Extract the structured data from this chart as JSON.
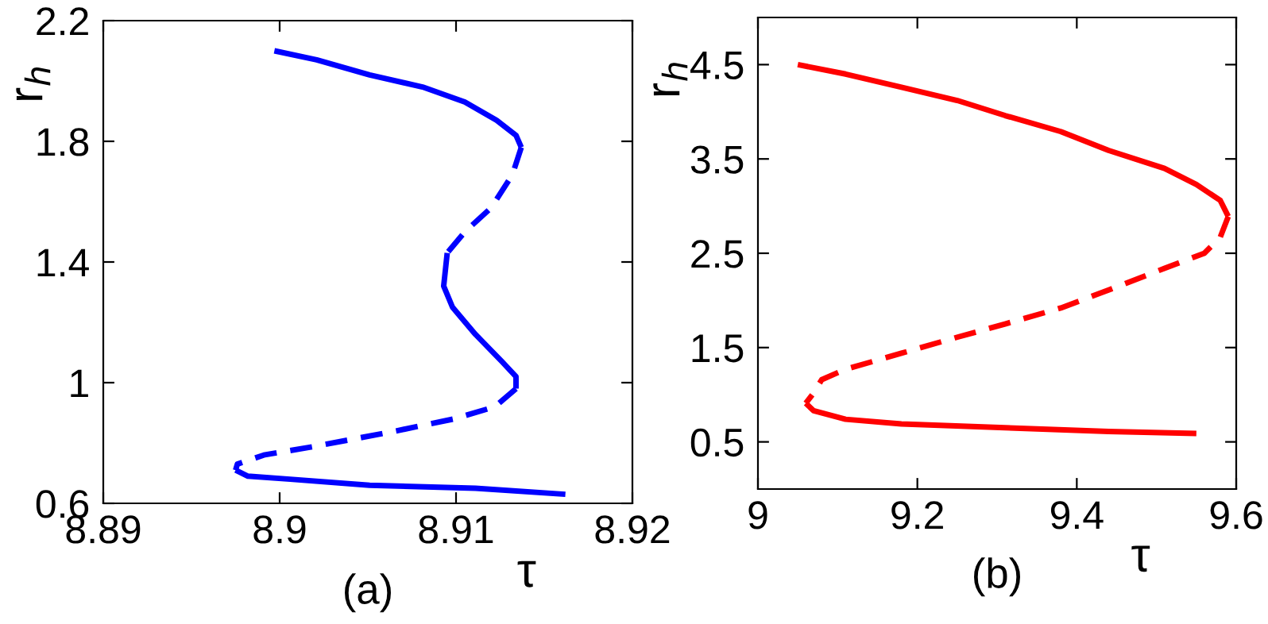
{
  "chart_data": [
    {
      "type": "line",
      "xlabel": "τ",
      "ylabel": "r$_{h}$",
      "annotations": [
        "(a)"
      ],
      "xlim": [
        8.89,
        8.92
      ],
      "xticks": [
        8.89,
        8.9,
        8.91,
        8.92
      ],
      "ylim": [
        0.6,
        2.2
      ],
      "yticks": [
        0.6,
        1,
        1.4,
        1.8,
        2.2
      ],
      "series": [
        {
          "color": "#0000ff",
          "line_style": "solid",
          "x": [
            8.8997,
            8.9021,
            8.9051,
            8.9081,
            8.9105,
            8.9123,
            8.9134,
            8.9137
          ],
          "values": [
            2.1,
            2.07,
            2.02,
            1.98,
            1.93,
            1.87,
            1.82,
            1.78
          ]
        },
        {
          "color": "#0000ff",
          "line_style": "dashed",
          "x": [
            8.9137,
            8.9132,
            8.912,
            8.9105,
            8.9095
          ],
          "values": [
            1.78,
            1.69,
            1.58,
            1.5,
            1.43
          ]
        },
        {
          "color": "#0000ff",
          "line_style": "solid",
          "x": [
            8.9095,
            8.9093,
            8.9098,
            8.9111,
            8.9126,
            8.9134,
            8.9134
          ],
          "values": [
            1.43,
            1.32,
            1.25,
            1.16,
            1.07,
            1.02,
            0.98
          ]
        },
        {
          "color": "#0000ff",
          "line_style": "dashed",
          "x": [
            8.9134,
            8.9122,
            8.9099,
            8.9066,
            8.9021,
            8.8991,
            8.8976,
            8.8975
          ],
          "values": [
            0.98,
            0.92,
            0.88,
            0.84,
            0.79,
            0.76,
            0.73,
            0.71
          ]
        },
        {
          "color": "#0000ff",
          "line_style": "solid",
          "x": [
            8.8975,
            8.8982,
            8.9006,
            8.9051,
            8.9111,
            8.9162
          ],
          "values": [
            0.71,
            0.69,
            0.68,
            0.66,
            0.65,
            0.63
          ]
        }
      ]
    },
    {
      "type": "line",
      "xlabel": "τ",
      "ylabel": "r$_{h}$",
      "annotations": [
        "(b)"
      ],
      "xlim": [
        9,
        9.6
      ],
      "xticks": [
        9,
        9.2,
        9.4,
        9.6
      ],
      "ylim": [
        0,
        5
      ],
      "yticks": [
        0.5,
        1.5,
        2.5,
        3.5,
        4.5
      ],
      "series": [
        {
          "color": "#ff0000",
          "line_style": "solid",
          "x": [
            9.05,
            9.11,
            9.18,
            9.25,
            9.31,
            9.38,
            9.44,
            9.51,
            9.55,
            9.58,
            9.59
          ],
          "values": [
            4.5,
            4.4,
            4.26,
            4.12,
            3.96,
            3.79,
            3.59,
            3.4,
            3.23,
            3.06,
            2.89
          ]
        },
        {
          "color": "#ff0000",
          "line_style": "dashed",
          "x": [
            9.59,
            9.58,
            9.56,
            9.51,
            9.44,
            9.38,
            9.31,
            9.25,
            9.18,
            9.11,
            9.08,
            9.07,
            9.06
          ],
          "values": [
            2.89,
            2.67,
            2.5,
            2.34,
            2.11,
            1.92,
            1.75,
            1.61,
            1.44,
            1.27,
            1.16,
            1.02,
            0.91
          ]
        },
        {
          "color": "#ff0000",
          "line_style": "solid",
          "x": [
            9.06,
            9.07,
            9.11,
            9.18,
            9.31,
            9.44,
            9.55
          ],
          "values": [
            0.91,
            0.83,
            0.74,
            0.69,
            0.65,
            0.61,
            0.59
          ]
        }
      ]
    }
  ]
}
